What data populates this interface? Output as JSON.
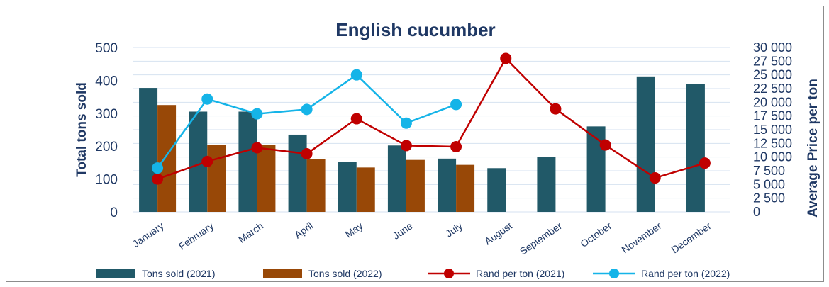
{
  "chart_data": {
    "type": "bar",
    "title": "English cucumber",
    "categories": [
      "January",
      "February",
      "March",
      "April",
      "May",
      "June",
      "July",
      "August",
      "September",
      "October",
      "November",
      "December"
    ],
    "ylabel": "Total tons sold",
    "y2label": "Average Price per ton",
    "ylim": [
      0,
      500
    ],
    "y2lim": [
      0,
      30000
    ],
    "yticks": [
      "0",
      "100",
      "200",
      "300",
      "400",
      "500"
    ],
    "y2ticks": [
      "0",
      "2 500",
      "5 000",
      "7 500",
      "10 000",
      "12 500",
      "15 000",
      "17 500",
      "20 000",
      "22 500",
      "25 000",
      "27 500",
      "30 000"
    ],
    "grid": true,
    "legend_position": "bottom",
    "series": [
      {
        "name": "Tons sold (2021)",
        "kind": "bar",
        "axis": "left",
        "color": "#215968",
        "values": [
          377,
          305,
          305,
          235,
          152,
          202,
          162,
          133,
          168,
          260,
          412,
          390
        ]
      },
      {
        "name": "Tons sold (2022)",
        "kind": "bar",
        "axis": "left",
        "color": "#984807",
        "values": [
          325,
          203,
          203,
          160,
          135,
          158,
          143,
          null,
          null,
          null,
          null,
          null
        ]
      },
      {
        "name": "Rand per ton (2021)",
        "kind": "line",
        "axis": "right",
        "color": "#c00000",
        "values": [
          6000,
          9200,
          11700,
          10600,
          17000,
          12100,
          11900,
          28000,
          18800,
          12200,
          6200,
          8900
        ]
      },
      {
        "name": "Rand per ton (2022)",
        "kind": "line",
        "axis": "right",
        "color": "#15b4e8",
        "values": [
          8000,
          20600,
          17900,
          18700,
          25000,
          16200,
          19600,
          null,
          null,
          null,
          null,
          null
        ]
      }
    ]
  }
}
